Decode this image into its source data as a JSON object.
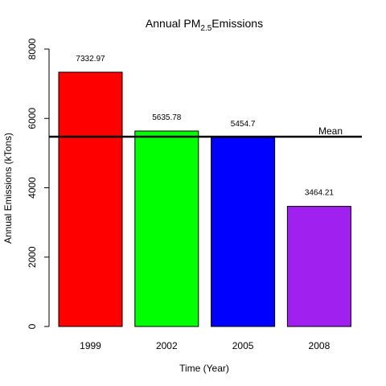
{
  "chart_data": {
    "type": "bar",
    "title": {
      "main": "Annual PM",
      "subscript": "2.5",
      "suffix": "Emissions"
    },
    "xlabel": "Time (Year)",
    "ylabel": "Annual Emissions (kTons)",
    "categories": [
      "1999",
      "2002",
      "2005",
      "2008"
    ],
    "values": [
      7332.97,
      5635.78,
      5454.7,
      3464.21
    ],
    "data_labels": [
      "7332.97",
      "5635.78",
      "5454.7",
      "3464.21"
    ],
    "colors": [
      "#ff0000",
      "#00ff00",
      "#0000ff",
      "#a020f0"
    ],
    "ylim": [
      0,
      8000
    ],
    "yticks": [
      0,
      2000,
      4000,
      6000,
      8000
    ],
    "ytick_labels": [
      "0",
      "2000",
      "4000",
      "6000",
      "8000"
    ],
    "mean": {
      "label": "Mean",
      "value": 5471.9
    },
    "grid": false,
    "legend": "none"
  }
}
